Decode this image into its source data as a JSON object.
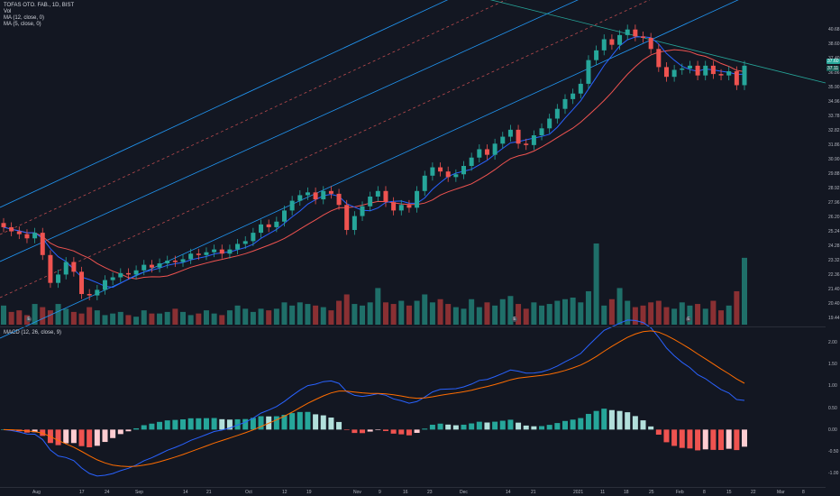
{
  "legend": {
    "symbol": "TOFAS OTO. FAB., 1D, BIST",
    "vol": "Vol",
    "ma1": "MA (12, close, 0)",
    "ma2": "MA (5, close, 0)",
    "macd": "MACD (12, 26, close, 9)"
  },
  "price_axis": [
    "40.68",
    "38.60",
    "37.40",
    "36.86",
    "35.90",
    "34.96",
    "33.78",
    "32.82",
    "31.86",
    "30.90",
    "29.88",
    "28.92",
    "27.96",
    "26.20",
    "25.24",
    "24.28",
    "23.32",
    "22.36",
    "21.40",
    "20.40",
    "19.44"
  ],
  "price_badges": {
    "last": "37.60",
    "ma": "37.11"
  },
  "macd_axis": [
    "2.00",
    "1.50",
    "1.00",
    "0.50",
    "0.00",
    "-0.50",
    "-1.00"
  ],
  "time_axis": [
    "Aug",
    "17",
    "24",
    "Sep",
    "14",
    "21",
    "Oct",
    "12",
    "19",
    "Nov",
    "9",
    "16",
    "23",
    "Dec",
    "14",
    "21",
    "2021",
    "11",
    "18",
    "25",
    "Feb",
    "8",
    "15",
    "22",
    "Mar",
    "8"
  ],
  "event_marker": "E",
  "colors": {
    "bg": "#131722",
    "up": "#26a69a",
    "down": "#ef5350",
    "ma_fast": "#2962ff",
    "ma_slow": "#ef5350",
    "channel": "#2196f3",
    "grid": "#2a2e39"
  },
  "chart_data": {
    "type": "candlestick",
    "note_series": [
      "price",
      "volume",
      "macd"
    ],
    "closes": [
      26.0,
      25.7,
      25.5,
      25.2,
      25.6,
      24.0,
      22.0,
      22.6,
      23.5,
      22.8,
      21.2,
      21.1,
      21.5,
      22.2,
      22.4,
      22.7,
      22.6,
      22.9,
      23.3,
      23.1,
      23.4,
      23.6,
      23.5,
      23.7,
      24.1,
      24.0,
      24.2,
      24.4,
      24.1,
      24.4,
      24.8,
      25.0,
      25.6,
      26.2,
      26.0,
      26.4,
      27.2,
      27.9,
      28.3,
      28.5,
      28.0,
      28.6,
      28.4,
      27.6,
      25.8,
      26.8,
      27.5,
      28.2,
      28.6,
      27.8,
      27.2,
      27.6,
      27.4,
      28.6,
      29.7,
      30.3,
      30.0,
      29.6,
      29.8,
      30.4,
      31.0,
      31.6,
      31.2,
      32.0,
      32.5,
      33.0,
      32.0,
      31.9,
      32.6,
      33.1,
      33.8,
      34.5,
      35.2,
      35.6,
      36.3,
      38.0,
      38.7,
      39.5,
      39.1,
      39.8,
      40.2,
      39.7,
      39.6,
      38.8,
      37.5,
      36.8,
      37.3,
      37.4,
      37.6,
      36.9,
      37.6,
      37.0,
      36.9,
      37.2,
      36.2,
      37.6
    ],
    "volume": [
      1.2,
      0.8,
      0.9,
      0.6,
      1.3,
      1.1,
      0.9,
      1.3,
      1.0,
      0.8,
      0.7,
      1.1,
      0.9,
      0.6,
      0.7,
      0.8,
      0.6,
      0.5,
      0.9,
      0.7,
      0.7,
      0.8,
      1.0,
      0.8,
      0.6,
      0.7,
      0.9,
      0.7,
      0.6,
      0.9,
      1.2,
      1.0,
      0.8,
      1.0,
      0.9,
      1.0,
      1.4,
      1.2,
      1.4,
      1.3,
      1.2,
      1.1,
      0.9,
      1.5,
      1.9,
      1.3,
      1.2,
      1.4,
      2.3,
      1.4,
      1.3,
      1.5,
      1.2,
      1.5,
      1.9,
      1.4,
      1.6,
      1.3,
      1.1,
      1.0,
      1.6,
      1.1,
      1.4,
      1.2,
      1.6,
      1.8,
      1.3,
      1.0,
      1.4,
      1.2,
      1.3,
      1.5,
      1.6,
      1.7,
      1.4,
      2.1,
      5.1,
      1.2,
      1.6,
      2.3,
      1.5,
      1.1,
      1.2,
      1.4,
      1.5,
      1.1,
      1.0,
      1.4,
      1.2,
      1.3,
      1.0,
      1.5,
      0.9,
      1.2,
      2.1,
      4.2
    ],
    "macd_axis_range": [
      -1.2,
      2.2
    ],
    "price_range": [
      19.0,
      41.8
    ]
  }
}
